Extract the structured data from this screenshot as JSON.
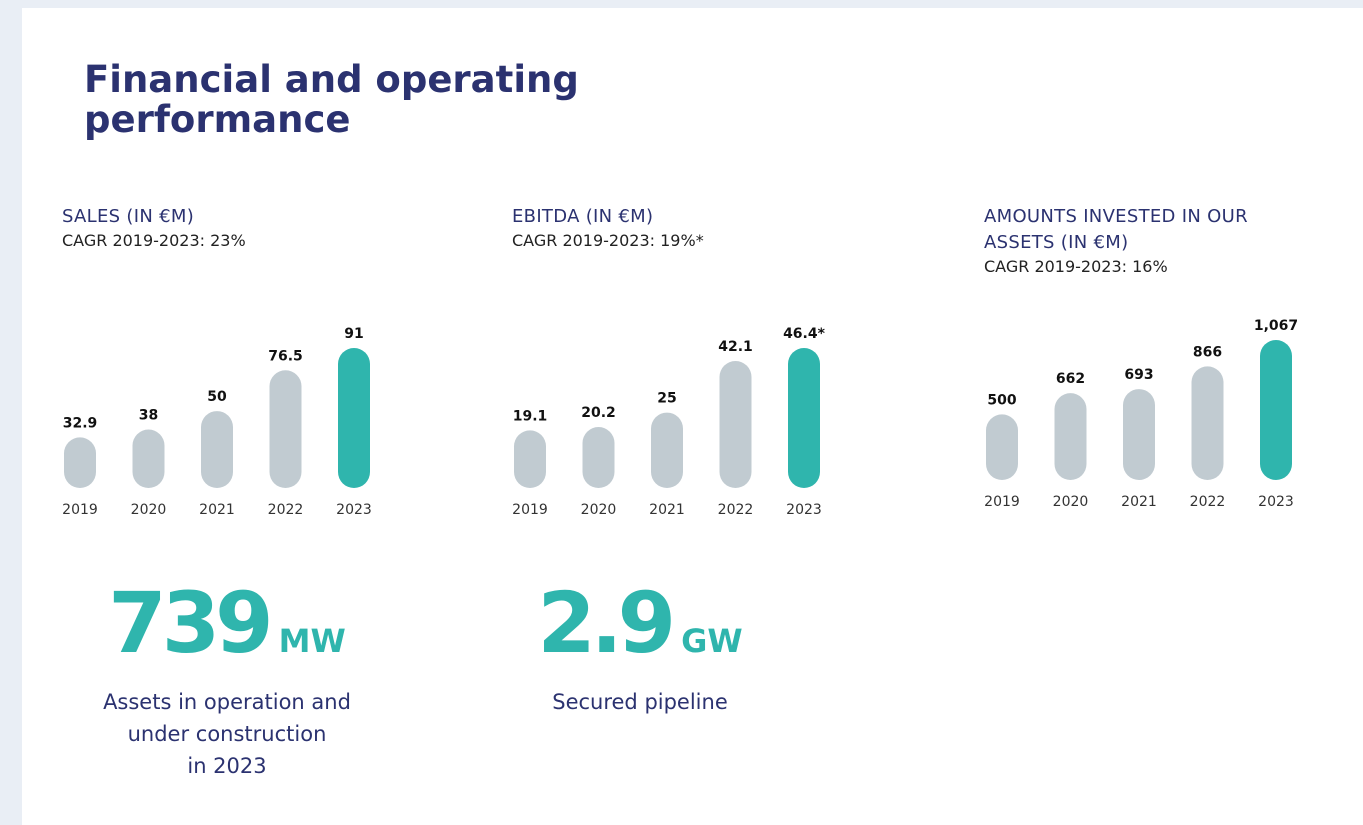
{
  "title": "Financial and operating performance",
  "chart_data": [
    {
      "type": "bar",
      "title": "SALES (IN €M)",
      "subtitle": "CAGR 2019-2023: 23%",
      "categories": [
        "2019",
        "2020",
        "2021",
        "2022",
        "2023"
      ],
      "values": [
        32.9,
        38,
        50,
        76.5,
        91
      ],
      "colors": [
        "#c1cbd1",
        "#c1cbd1",
        "#c1cbd1",
        "#c1cbd1",
        "#2fb5ad"
      ]
    },
    {
      "type": "bar",
      "title": "EBITDA (IN €M)",
      "subtitle": "CAGR 2019-2023: 19%*",
      "categories": [
        "2019",
        "2020",
        "2021",
        "2022",
        "2023"
      ],
      "values": [
        19.1,
        20.2,
        25,
        42.1,
        46.4
      ],
      "value_labels": [
        "19.1",
        "20.2",
        "25",
        "42.1",
        "46.4*"
      ],
      "colors": [
        "#c1cbd1",
        "#c1cbd1",
        "#c1cbd1",
        "#c1cbd1",
        "#2fb5ad"
      ]
    },
    {
      "type": "bar",
      "title": "AMOUNTS INVESTED IN OUR ASSETS (IN €M)",
      "subtitle": "CAGR 2019-2023: 16%",
      "categories": [
        "2019",
        "2020",
        "2021",
        "2022",
        "2023"
      ],
      "values": [
        500,
        662,
        693,
        866,
        1067
      ],
      "value_labels": [
        "500",
        "662",
        "693",
        "866",
        "1,067"
      ],
      "colors": [
        "#c1cbd1",
        "#c1cbd1",
        "#c1cbd1",
        "#c1cbd1",
        "#2fb5ad"
      ]
    }
  ],
  "kpis": [
    {
      "value": "739",
      "unit": "MW",
      "description": [
        "Assets in operation and",
        "under construction",
        "in  2023"
      ]
    },
    {
      "value": "2.9",
      "unit": "GW",
      "description": [
        "Secured pipeline"
      ]
    }
  ]
}
